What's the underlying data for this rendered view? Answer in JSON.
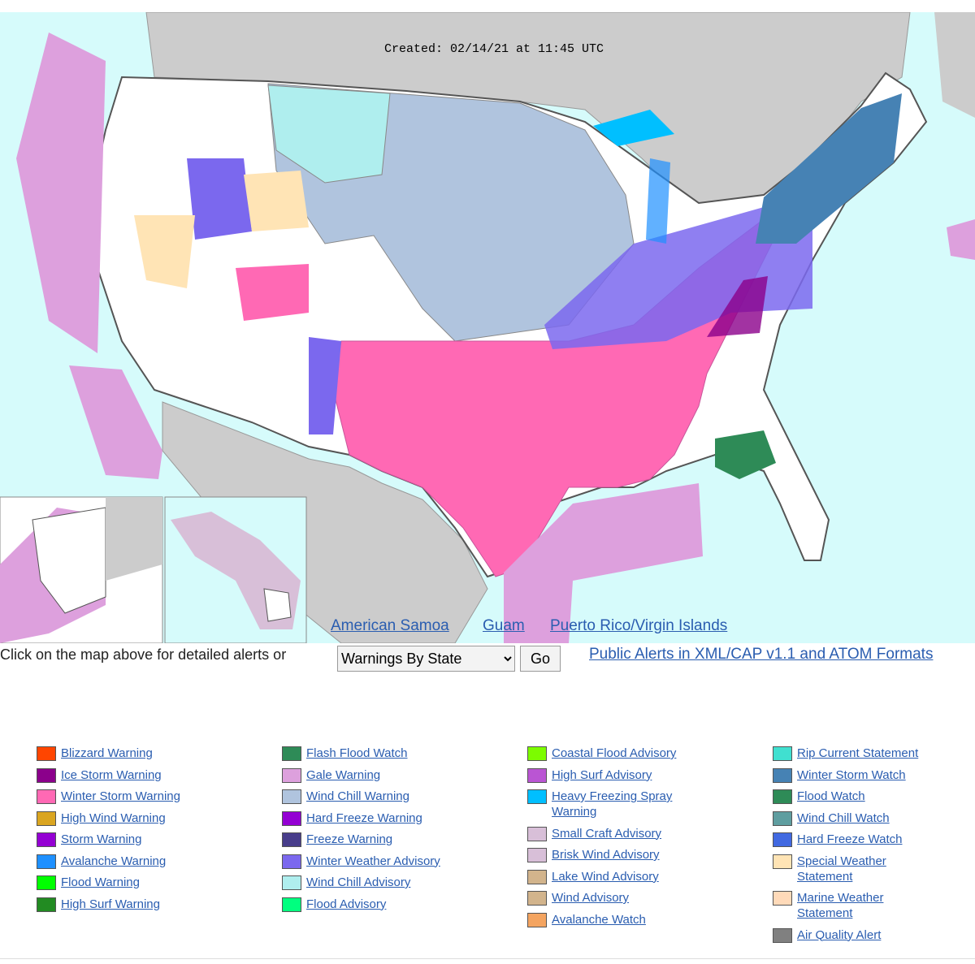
{
  "header": {
    "created": "Created: 02/14/21 at 11:45 UTC"
  },
  "map_links": [
    "American Samoa",
    "Guam",
    "Puerto Rico/Virgin Islands"
  ],
  "controls": {
    "prompt": "Click on the map above for detailed alerts or",
    "select": "Warnings By State",
    "button": "Go",
    "feed_link": "Public Alerts in XML/CAP v1.1 and ATOM Formats"
  },
  "legend": {
    "columns": [
      [
        {
          "label": [
            "Blizzard Warning"
          ],
          "color": "#ff4500"
        },
        {
          "label": [
            "Ice Storm Warning"
          ],
          "color": "#8b008b"
        },
        {
          "label": [
            "Winter Storm Warning"
          ],
          "color": "#ff69b4"
        },
        {
          "label": [
            "High Wind Warning"
          ],
          "color": "#daa520"
        },
        {
          "label": [
            "Storm Warning"
          ],
          "color": "#9400d3"
        },
        {
          "label": [
            "Avalanche Warning"
          ],
          "color": "#1e90ff"
        },
        {
          "label": [
            "Flood Warning"
          ],
          "color": "#00ff00"
        },
        {
          "label": [
            "High Surf Warning"
          ],
          "color": "#228b22"
        }
      ],
      [
        {
          "label": [
            "Flash Flood Watch"
          ],
          "color": "#2e8b57"
        },
        {
          "label": [
            "Gale Warning"
          ],
          "color": "#dda0dd"
        },
        {
          "label": [
            "Wind Chill Warning"
          ],
          "color": "#b0c4de"
        },
        {
          "label": [
            "Hard Freeze Warning"
          ],
          "color": "#9400d3"
        },
        {
          "label": [
            "Freeze Warning"
          ],
          "color": "#483d8b"
        },
        {
          "label": [
            "Winter Weather Advisory"
          ],
          "color": "#7b68ee"
        },
        {
          "label": [
            "Wind Chill Advisory"
          ],
          "color": "#afeeee"
        },
        {
          "label": [
            "Flood Advisory"
          ],
          "color": "#00ff7f"
        }
      ],
      [
        {
          "label": [
            "Coastal Flood Advisory"
          ],
          "color": "#7cfc00"
        },
        {
          "label": [
            "High Surf Advisory"
          ],
          "color": "#ba55d3"
        },
        {
          "label": [
            "Heavy Freezing Spray",
            "Warning"
          ],
          "color": "#00bfff"
        },
        {
          "label": [
            "Small Craft Advisory"
          ],
          "color": "#d8bfd8"
        },
        {
          "label": [
            "Brisk Wind Advisory"
          ],
          "color": "#d8bfd8"
        },
        {
          "label": [
            "Lake Wind Advisory"
          ],
          "color": "#d2b48c"
        },
        {
          "label": [
            "Wind Advisory"
          ],
          "color": "#d2b48c"
        },
        {
          "label": [
            "Avalanche Watch"
          ],
          "color": "#f4a460"
        }
      ],
      [
        {
          "label": [
            "Rip Current Statement"
          ],
          "color": "#40e0d0"
        },
        {
          "label": [
            "Winter Storm Watch"
          ],
          "color": "#4682b4"
        },
        {
          "label": [
            "Flood Watch"
          ],
          "color": "#2e8b57"
        },
        {
          "label": [
            "Wind Chill Watch"
          ],
          "color": "#5f9ea0"
        },
        {
          "label": [
            "Hard Freeze Watch"
          ],
          "color": "#4169e1"
        },
        {
          "label": [
            "Special Weather",
            "Statement"
          ],
          "color": "#ffe4b5"
        },
        {
          "label": [
            "Marine Weather",
            "Statement"
          ],
          "color": "#ffdab9"
        },
        {
          "label": [
            "Air Quality Alert"
          ],
          "color": "#808080"
        }
      ]
    ]
  }
}
